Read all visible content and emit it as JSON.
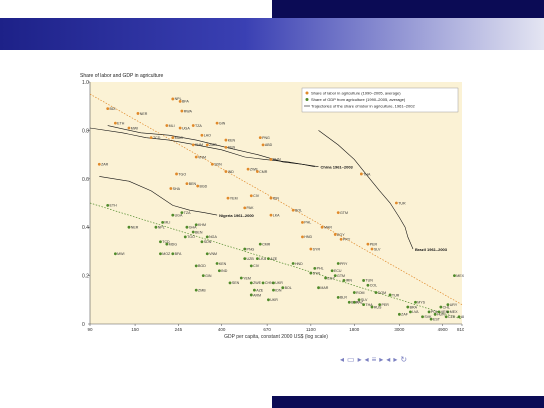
{
  "chart_data": {
    "type": "scatter",
    "title": "Share of labor and GDP in agriculture",
    "xlabel": "GDP per capita, constant 2000 US$ (log scale)",
    "ylabel": "",
    "x_scale": "log",
    "xlim": [
      90,
      6100
    ],
    "ylim": [
      0,
      1.0
    ],
    "x_ticks": [
      "90",
      "150",
      "245",
      "400",
      "670",
      "1100",
      "1800",
      "3000",
      "4900",
      "8100"
    ],
    "x_tick_values": [
      90,
      150,
      245,
      400,
      670,
      1100,
      1800,
      3000,
      4900,
      8100
    ],
    "y_ticks": [
      "0",
      "0.2",
      "0.4",
      "0.6",
      "0.8",
      "1.0"
    ],
    "y_tick_values": [
      0,
      0.2,
      0.4,
      0.6,
      0.8,
      1.0
    ],
    "legend_position": "top-right",
    "colors": {
      "labor": "#e0892a",
      "gdp": "#4f8a2a",
      "trajectory": "#111111",
      "background": "#fbf2d5"
    },
    "series": [
      {
        "name": "Share of labor in agriculture (1990–2005, average)",
        "marker": "labor",
        "points": [
          {
            "label": "NPL",
            "x": 230,
            "y": 0.93
          },
          {
            "label": "BFA",
            "x": 250,
            "y": 0.92
          },
          {
            "label": "RWA",
            "x": 255,
            "y": 0.88
          },
          {
            "label": "BDI",
            "x": 110,
            "y": 0.89
          },
          {
            "label": "NER",
            "x": 155,
            "y": 0.87
          },
          {
            "label": "GIN",
            "x": 380,
            "y": 0.83
          },
          {
            "label": "ETH",
            "x": 120,
            "y": 0.83
          },
          {
            "label": "MWI",
            "x": 140,
            "y": 0.81
          },
          {
            "label": "MLI",
            "x": 215,
            "y": 0.82
          },
          {
            "label": "UGA",
            "x": 250,
            "y": 0.81
          },
          {
            "label": "TZA",
            "x": 290,
            "y": 0.82
          },
          {
            "label": "TCD",
            "x": 180,
            "y": 0.77
          },
          {
            "label": "MDG",
            "x": 230,
            "y": 0.77
          },
          {
            "label": "LAO",
            "x": 320,
            "y": 0.78
          },
          {
            "label": "KHM",
            "x": 290,
            "y": 0.74
          },
          {
            "label": "ZMB",
            "x": 340,
            "y": 0.74
          },
          {
            "label": "KEN",
            "x": 420,
            "y": 0.76
          },
          {
            "label": "SEN",
            "x": 420,
            "y": 0.73
          },
          {
            "label": "PNG",
            "x": 620,
            "y": 0.77
          },
          {
            "label": "ABD",
            "x": 640,
            "y": 0.74
          },
          {
            "label": "CHN",
            "x": 700,
            "y": 0.68
          },
          {
            "label": "VNM",
            "x": 300,
            "y": 0.69
          },
          {
            "label": "SDN",
            "x": 360,
            "y": 0.66
          },
          {
            "label": "IND",
            "x": 420,
            "y": 0.63
          },
          {
            "label": "ZWE",
            "x": 540,
            "y": 0.64
          },
          {
            "label": "CMR",
            "x": 600,
            "y": 0.63
          },
          {
            "label": "ZAR",
            "x": 100,
            "y": 0.66
          },
          {
            "label": "TGO",
            "x": 240,
            "y": 0.62
          },
          {
            "label": "SHA",
            "x": 225,
            "y": 0.56
          },
          {
            "label": "BEN",
            "x": 270,
            "y": 0.58
          },
          {
            "label": "BGD",
            "x": 305,
            "y": 0.57
          },
          {
            "label": "THA",
            "x": 1950,
            "y": 0.62
          },
          {
            "label": "CIV",
            "x": 560,
            "y": 0.53
          },
          {
            "label": "IDN",
            "x": 700,
            "y": 0.52
          },
          {
            "label": "YEM",
            "x": 430,
            "y": 0.52
          },
          {
            "label": "PAK",
            "x": 520,
            "y": 0.48
          },
          {
            "label": "LKA",
            "x": 700,
            "y": 0.45
          },
          {
            "label": "BOL",
            "x": 900,
            "y": 0.47
          },
          {
            "label": "GTM",
            "x": 1500,
            "y": 0.46
          },
          {
            "label": "TUR",
            "x": 2900,
            "y": 0.5
          },
          {
            "label": "PHL",
            "x": 1000,
            "y": 0.42
          },
          {
            "label": "MAR",
            "x": 1250,
            "y": 0.4
          },
          {
            "label": "EGY",
            "x": 1450,
            "y": 0.37
          },
          {
            "label": "PRY",
            "x": 1550,
            "y": 0.35
          },
          {
            "label": "PER",
            "x": 2100,
            "y": 0.33
          },
          {
            "label": "SLV",
            "x": 2200,
            "y": 0.31
          },
          {
            "label": "HND",
            "x": 1000,
            "y": 0.36
          },
          {
            "label": "SYR",
            "x": 1100,
            "y": 0.31
          }
        ]
      },
      {
        "name": "Share of GDP from agriculture (1990–2005, average)",
        "marker": "gdp",
        "points": [
          {
            "label": "ETH",
            "x": 110,
            "y": 0.49
          },
          {
            "label": "NER",
            "x": 140,
            "y": 0.4
          },
          {
            "label": "NPL",
            "x": 190,
            "y": 0.4
          },
          {
            "label": "MLI",
            "x": 205,
            "y": 0.42
          },
          {
            "label": "UGA",
            "x": 230,
            "y": 0.45
          },
          {
            "label": "TZA",
            "x": 255,
            "y": 0.46
          },
          {
            "label": "GHA",
            "x": 270,
            "y": 0.4
          },
          {
            "label": "KHM",
            "x": 300,
            "y": 0.41
          },
          {
            "label": "BEN",
            "x": 290,
            "y": 0.38
          },
          {
            "label": "TGO",
            "x": 265,
            "y": 0.36
          },
          {
            "label": "TCD",
            "x": 200,
            "y": 0.34
          },
          {
            "label": "MDG",
            "x": 215,
            "y": 0.33
          },
          {
            "label": "NGA",
            "x": 340,
            "y": 0.36
          },
          {
            "label": "SDN",
            "x": 320,
            "y": 0.34
          },
          {
            "label": "BGD",
            "x": 300,
            "y": 0.24
          },
          {
            "label": "MWI",
            "x": 120,
            "y": 0.29
          },
          {
            "label": "MOZ",
            "x": 200,
            "y": 0.29
          },
          {
            "label": "BFA",
            "x": 230,
            "y": 0.29
          },
          {
            "label": "VNM",
            "x": 340,
            "y": 0.29
          },
          {
            "label": "KEN",
            "x": 380,
            "y": 0.25
          },
          {
            "label": "IND",
            "x": 390,
            "y": 0.22
          },
          {
            "label": "GIN",
            "x": 325,
            "y": 0.2
          },
          {
            "label": "ZMB",
            "x": 300,
            "y": 0.14
          },
          {
            "label": "PNG",
            "x": 520,
            "y": 0.31
          },
          {
            "label": "CMR",
            "x": 620,
            "y": 0.33
          },
          {
            "label": "UZB",
            "x": 520,
            "y": 0.27
          },
          {
            "label": "LKA",
            "x": 600,
            "y": 0.27
          },
          {
            "label": "CIV",
            "x": 560,
            "y": 0.24
          },
          {
            "label": "AZE",
            "x": 680,
            "y": 0.27
          },
          {
            "label": "YEM",
            "x": 500,
            "y": 0.19
          },
          {
            "label": "SEN",
            "x": 440,
            "y": 0.17
          },
          {
            "label": "ZWE",
            "x": 560,
            "y": 0.17
          },
          {
            "label": "CHN",
            "x": 640,
            "y": 0.17
          },
          {
            "label": "UKR",
            "x": 720,
            "y": 0.17
          },
          {
            "label": "AZE",
            "x": 580,
            "y": 0.14
          },
          {
            "label": "IDN",
            "x": 720,
            "y": 0.14
          },
          {
            "label": "ARM",
            "x": 560,
            "y": 0.12
          },
          {
            "label": "BOL",
            "x": 800,
            "y": 0.15
          },
          {
            "label": "UKR",
            "x": 680,
            "y": 0.1
          },
          {
            "label": "HND",
            "x": 900,
            "y": 0.25
          },
          {
            "label": "SYR",
            "x": 1100,
            "y": 0.21
          },
          {
            "label": "PHL",
            "x": 1150,
            "y": 0.23
          },
          {
            "label": "EGY",
            "x": 1300,
            "y": 0.19
          },
          {
            "label": "MAR",
            "x": 1200,
            "y": 0.15
          },
          {
            "label": "GTM",
            "x": 1450,
            "y": 0.2
          },
          {
            "label": "ECU",
            "x": 1400,
            "y": 0.22
          },
          {
            "label": "PRY",
            "x": 1500,
            "y": 0.25
          },
          {
            "label": "IRN",
            "x": 1600,
            "y": 0.18
          },
          {
            "label": "TUN",
            "x": 2000,
            "y": 0.18
          },
          {
            "label": "COL",
            "x": 2100,
            "y": 0.16
          },
          {
            "label": "ROM",
            "x": 1800,
            "y": 0.13
          },
          {
            "label": "BLR",
            "x": 1500,
            "y": 0.11
          },
          {
            "label": "DOM",
            "x": 2300,
            "y": 0.13
          },
          {
            "label": "TUR",
            "x": 2700,
            "y": 0.12
          },
          {
            "label": "THA",
            "x": 2000,
            "y": 0.08
          },
          {
            "label": "BGR",
            "x": 1700,
            "y": 0.09
          },
          {
            "label": "ZAF",
            "x": 3000,
            "y": 0.04
          },
          {
            "label": "MYS",
            "x": 3600,
            "y": 0.09
          },
          {
            "label": "RUS",
            "x": 2200,
            "y": 0.07
          },
          {
            "label": "POL",
            "x": 4200,
            "y": 0.05
          },
          {
            "label": "HUN",
            "x": 4500,
            "y": 0.04
          },
          {
            "label": "CZE",
            "x": 5100,
            "y": 0.03
          },
          {
            "label": "SVK",
            "x": 3900,
            "y": 0.03
          },
          {
            "label": "MEX",
            "x": 5200,
            "y": 0.05
          },
          {
            "label": "ARG",
            "x": 5900,
            "y": 0.03
          },
          {
            "label": "CHL",
            "x": 4800,
            "y": 0.07
          },
          {
            "label": "VEN",
            "x": 4700,
            "y": 0.05
          },
          {
            "label": "BRA",
            "x": 3300,
            "y": 0.07
          },
          {
            "label": "PER",
            "x": 2400,
            "y": 0.08
          },
          {
            "label": "SLV",
            "x": 1900,
            "y": 0.1
          },
          {
            "label": "MEX",
            "x": 5600,
            "y": 0.2
          },
          {
            "label": "LVA",
            "x": 3400,
            "y": 0.05
          },
          {
            "label": "EST",
            "x": 4300,
            "y": 0.02
          },
          {
            "label": "KAZ",
            "x": 1800,
            "y": 0.09
          },
          {
            "label": "URY",
            "x": 5200,
            "y": 0.08
          }
        ]
      }
    ],
    "trajectories": [
      {
        "name": "Trajectories of the share of labor in agriculture, 1961–2002",
        "label": "",
        "points": [
          [
            90,
            0.81
          ],
          [
            130,
            0.79
          ],
          [
            170,
            0.77
          ],
          [
            220,
            0.76
          ],
          [
            300,
            0.74
          ],
          [
            400,
            0.72
          ],
          [
            520,
            0.69
          ],
          [
            650,
            0.68
          ],
          [
            850,
            0.67
          ],
          [
            1000,
            0.66
          ],
          [
            1150,
            0.65
          ]
        ]
      },
      {
        "name": "",
        "label": "China 1961–2003",
        "points": [
          [
            110,
            0.82
          ],
          [
            160,
            0.79
          ],
          [
            220,
            0.78
          ],
          [
            300,
            0.76
          ],
          [
            420,
            0.73
          ],
          [
            600,
            0.7
          ],
          [
            800,
            0.67
          ],
          [
            1000,
            0.66
          ],
          [
            1200,
            0.65
          ]
        ]
      },
      {
        "name": "",
        "label": "Nigeria 1961–2000",
        "points": [
          [
            100,
            0.61
          ],
          [
            140,
            0.59
          ],
          [
            180,
            0.55
          ],
          [
            230,
            0.49
          ],
          [
            280,
            0.47
          ],
          [
            330,
            0.46
          ],
          [
            380,
            0.45
          ]
        ]
      },
      {
        "name": "",
        "label": "Brazil 1961–2003",
        "points": [
          [
            1200,
            0.8
          ],
          [
            1500,
            0.74
          ],
          [
            1800,
            0.68
          ],
          [
            2100,
            0.61
          ],
          [
            2400,
            0.55
          ],
          [
            2700,
            0.5
          ],
          [
            3000,
            0.44
          ],
          [
            3200,
            0.4
          ],
          [
            3300,
            0.36
          ],
          [
            3500,
            0.31
          ]
        ]
      }
    ],
    "fit_lines": [
      {
        "series": "labor",
        "points": [
          [
            90,
            0.95
          ],
          [
            6100,
            0.08
          ]
        ]
      },
      {
        "series": "gdp",
        "points": [
          [
            90,
            0.5
          ],
          [
            6100,
            0.02
          ]
        ]
      }
    ],
    "annotations": [
      "China 1961–2003",
      "Nigeria 1961–2000",
      "Brazil 1961–2003"
    ]
  }
}
